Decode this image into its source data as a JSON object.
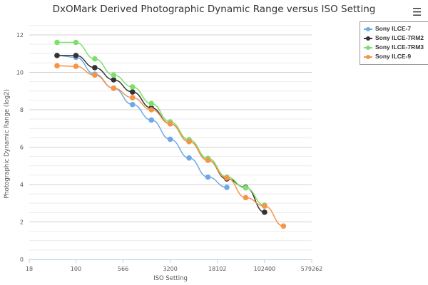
{
  "menu_icon": "hamburger-menu-icon",
  "chart_data": {
    "type": "line",
    "title": "DxOMark Derived Photographic Dynamic Range versus ISO Setting",
    "xlabel": "ISO Setting",
    "ylabel": "Photographic Dynamic Range (log2)",
    "x_scale": "log2",
    "xlim": [
      18,
      579262
    ],
    "ylim": [
      0,
      12.5
    ],
    "xticks": [
      "18",
      "100",
      "566",
      "3200",
      "18102",
      "102400",
      "579262"
    ],
    "yticks": [
      "0",
      "2",
      "4",
      "6",
      "8",
      "10",
      "12"
    ],
    "grid": true,
    "legend_position": "top-right",
    "series": [
      {
        "name": "Sony ILCE-7",
        "color": "#6fa8e8",
        "x": [
          50,
          100,
          200,
          400,
          800,
          1600,
          3200,
          6400,
          12800,
          25600
        ],
        "y": [
          10.9,
          10.8,
          9.9,
          9.15,
          8.28,
          7.45,
          6.42,
          5.42,
          4.4,
          3.85
        ]
      },
      {
        "name": "Sony ILCE-7RM2",
        "color": "#333333",
        "x": [
          50,
          100,
          200,
          400,
          800,
          1600,
          3200,
          6400,
          12800,
          25600,
          51200,
          102400
        ],
        "y": [
          10.9,
          10.9,
          10.25,
          9.6,
          8.95,
          8.1,
          7.25,
          6.3,
          5.3,
          4.3,
          3.85,
          2.52
        ]
      },
      {
        "name": "Sony ILCE-7RM3",
        "color": "#7de06a",
        "x": [
          50,
          100,
          200,
          400,
          800,
          1600,
          3200,
          6400,
          12800,
          25600,
          51200,
          102400
        ],
        "y": [
          11.6,
          11.6,
          10.72,
          9.85,
          9.22,
          8.33,
          7.35,
          6.4,
          5.4,
          4.4,
          3.82,
          2.9
        ]
      },
      {
        "name": "Sony ILCE-9",
        "color": "#f5954a",
        "x": [
          50,
          100,
          200,
          400,
          800,
          1600,
          3200,
          6400,
          12800,
          25600,
          51200,
          102400,
          204800
        ],
        "y": [
          10.35,
          10.32,
          9.85,
          9.15,
          8.65,
          8.0,
          7.25,
          6.3,
          5.3,
          4.35,
          3.3,
          2.85,
          1.78
        ]
      }
    ]
  }
}
